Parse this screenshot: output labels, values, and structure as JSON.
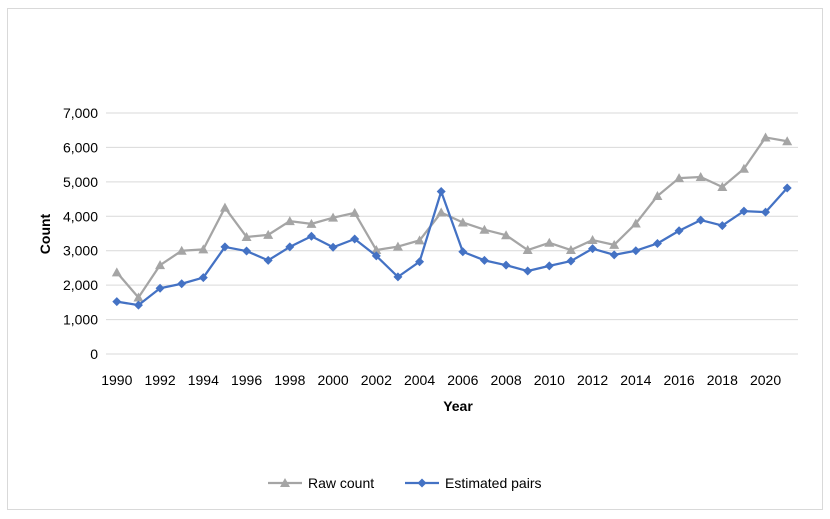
{
  "chart_data": {
    "type": "line",
    "title": "",
    "xlabel": "Year",
    "ylabel": "Count",
    "ylim": [
      0,
      7000
    ],
    "y_ticks": [
      0,
      1000,
      2000,
      3000,
      4000,
      5000,
      6000,
      7000
    ],
    "y_tick_labels": [
      "0",
      "1,000",
      "2,000",
      "3,000",
      "4,000",
      "5,000",
      "6,000",
      "7,000"
    ],
    "x_tick_labels": [
      "1990",
      "1992",
      "1994",
      "1996",
      "1998",
      "2000",
      "2002",
      "2004",
      "2006",
      "2008",
      "2010",
      "2012",
      "2014",
      "2016",
      "2018",
      "2020"
    ],
    "x": [
      1990,
      1991,
      1992,
      1993,
      1994,
      1995,
      1996,
      1997,
      1998,
      1999,
      2000,
      2001,
      2002,
      2003,
      2004,
      2005,
      2006,
      2007,
      2008,
      2009,
      2010,
      2011,
      2012,
      2013,
      2014,
      2015,
      2016,
      2017,
      2018,
      2019,
      2020,
      2021
    ],
    "grid": "horizontal",
    "legend_position": "bottom",
    "series": [
      {
        "name": "Raw count",
        "color": "#a5a5a5",
        "marker": "triangle",
        "values": [
          2370,
          1640,
          2580,
          3000,
          3040,
          4250,
          3400,
          3460,
          3860,
          3780,
          3960,
          4100,
          3020,
          3120,
          3300,
          4110,
          3820,
          3610,
          3450,
          3020,
          3230,
          3020,
          3310,
          3170,
          3790,
          4590,
          5110,
          5140,
          4850,
          5380,
          6290,
          6180
        ]
      },
      {
        "name": "Estimated pairs",
        "color": "#4472c4",
        "marker": "diamond",
        "values": [
          1520,
          1420,
          1910,
          2040,
          2220,
          3110,
          2990,
          2720,
          3110,
          3420,
          3100,
          3340,
          2850,
          2240,
          2680,
          4720,
          2970,
          2720,
          2580,
          2410,
          2560,
          2700,
          3060,
          2880,
          3000,
          3210,
          3580,
          3890,
          3730,
          4150,
          4120,
          4820
        ]
      }
    ]
  }
}
